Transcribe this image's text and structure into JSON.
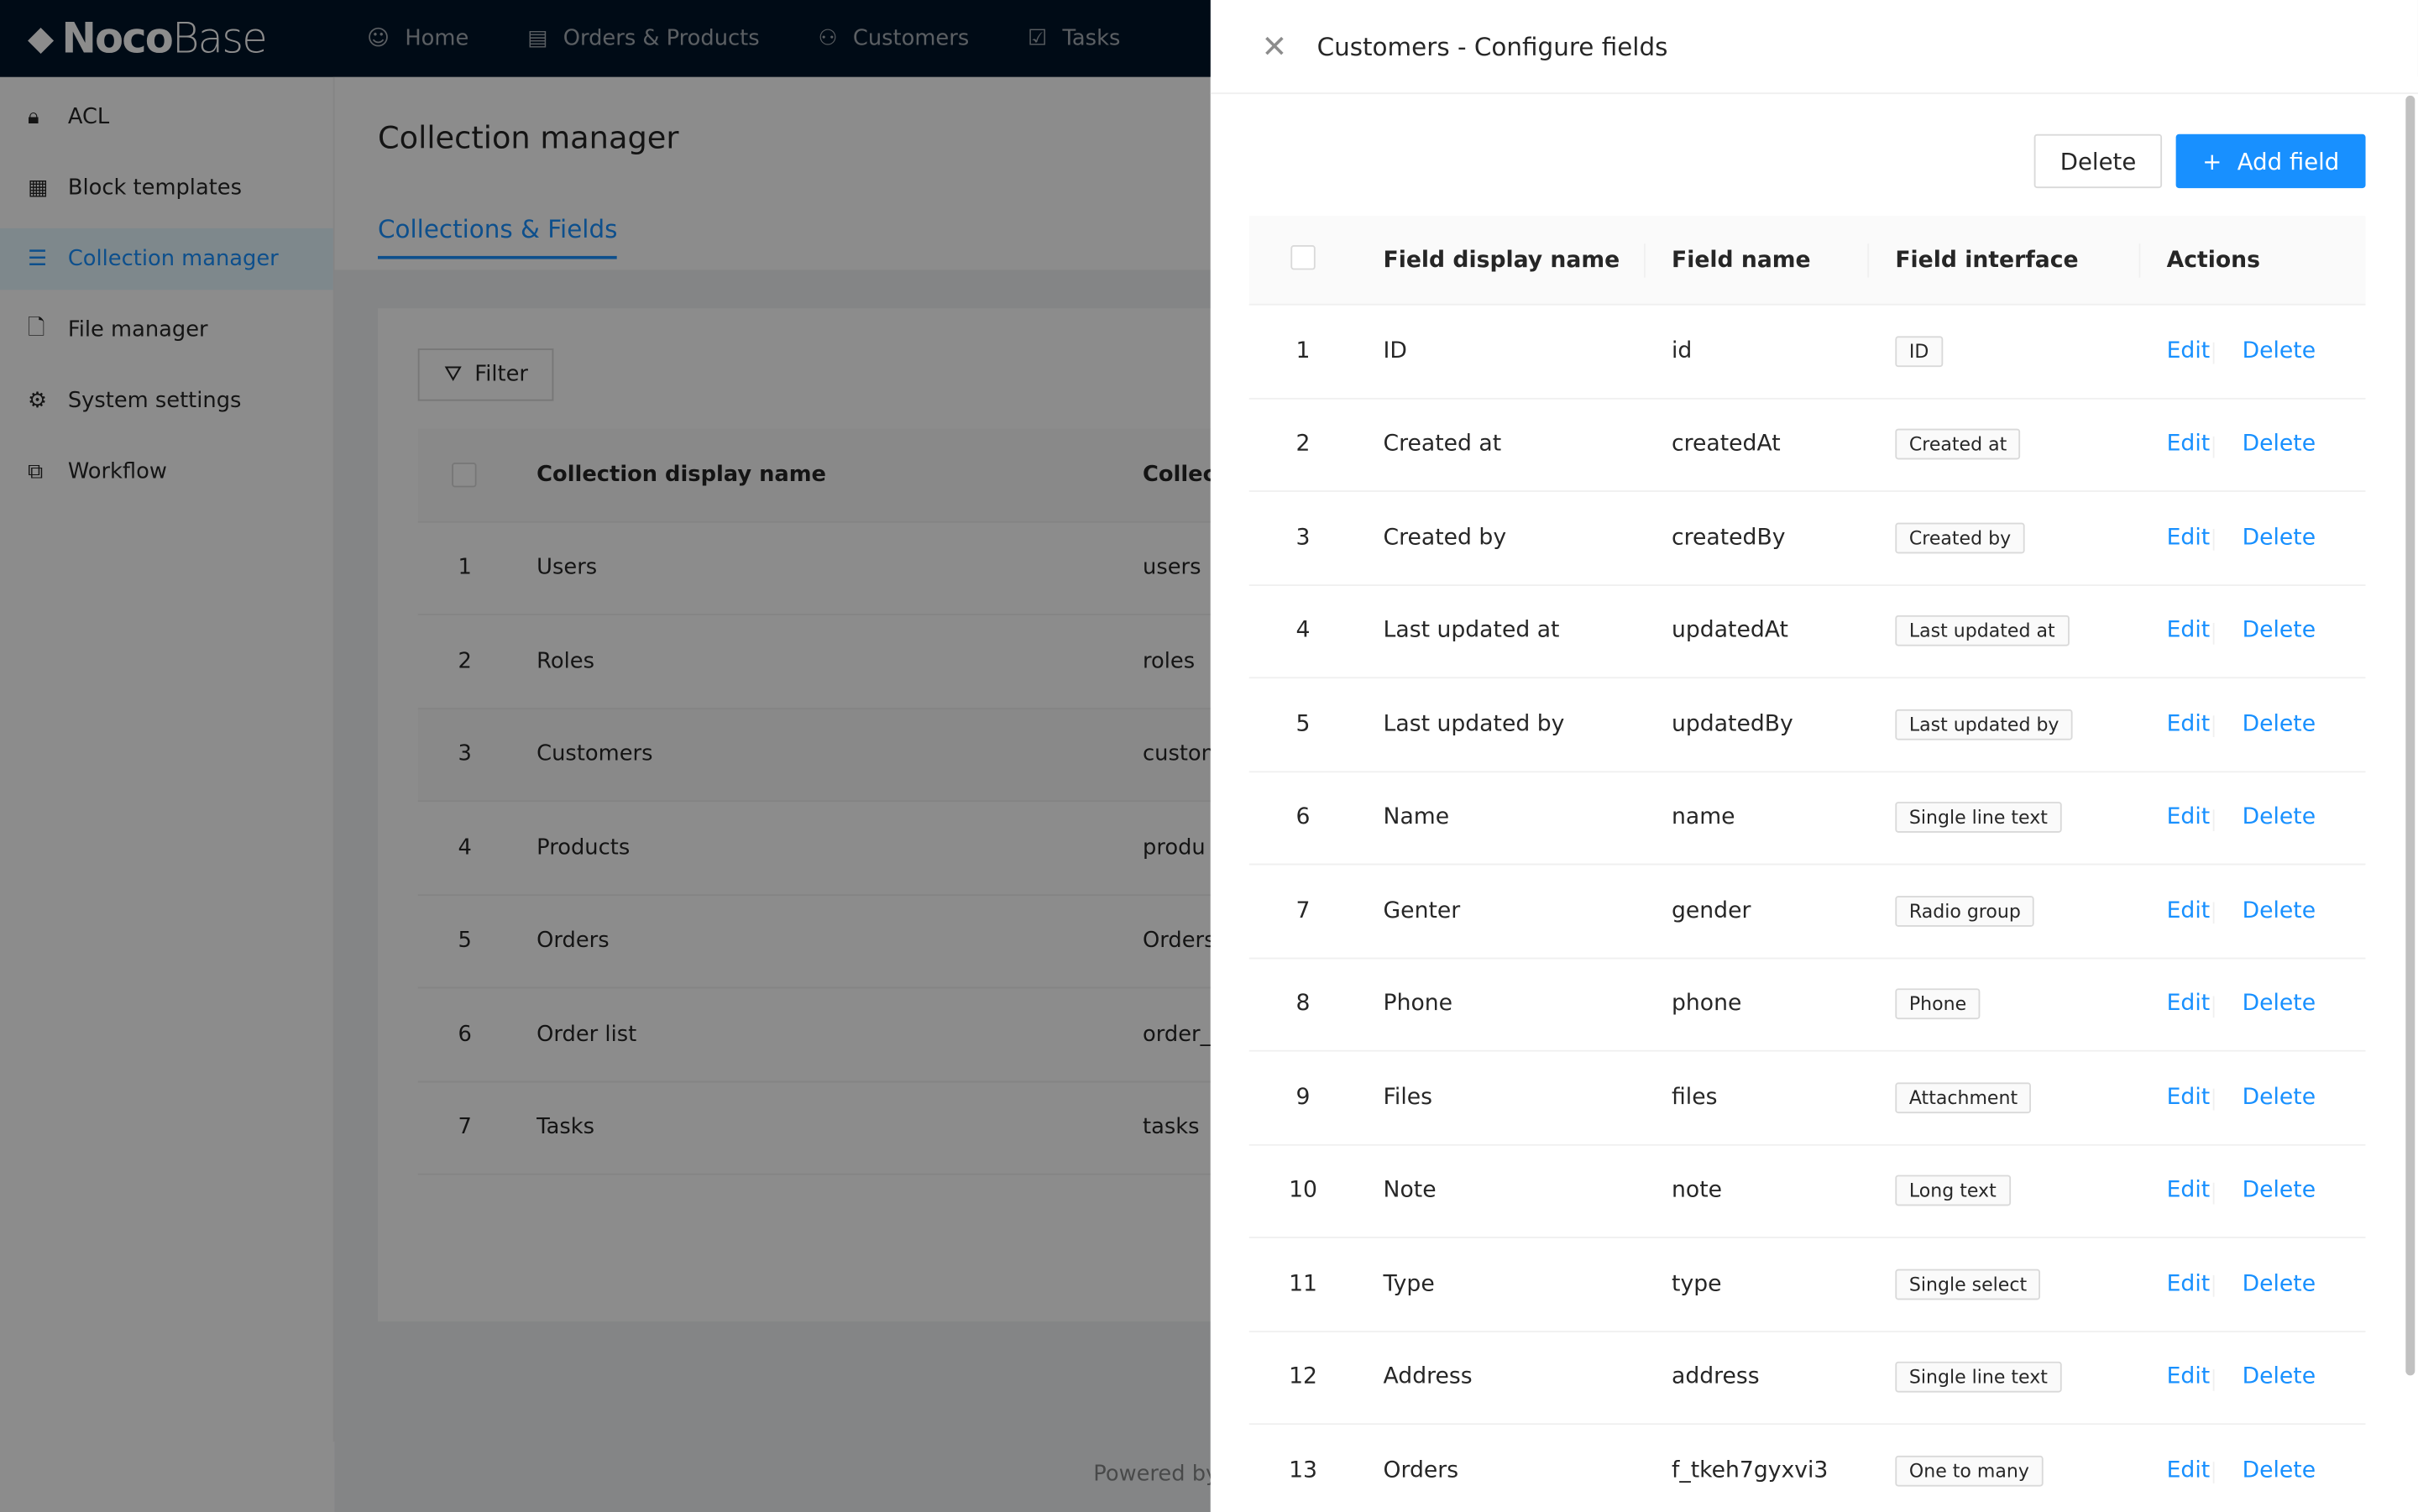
{
  "app": {
    "logo_bold": "Noco",
    "logo_light": "Base",
    "nav": [
      {
        "icon": "smile-icon",
        "label": "Home"
      },
      {
        "icon": "file-check-icon",
        "label": "Orders & Products"
      },
      {
        "icon": "users-icon",
        "label": "Customers"
      },
      {
        "icon": "checkbox-icon",
        "label": "Tasks"
      }
    ]
  },
  "sidebar": {
    "items": [
      {
        "icon": "lock-icon",
        "label": "ACL"
      },
      {
        "icon": "layout-icon",
        "label": "Block templates"
      },
      {
        "icon": "database-icon",
        "label": "Collection manager",
        "active": true
      },
      {
        "icon": "file-icon",
        "label": "File manager"
      },
      {
        "icon": "gear-icon",
        "label": "System settings"
      },
      {
        "icon": "workflow-icon",
        "label": "Workflow"
      }
    ]
  },
  "main": {
    "title": "Collection manager",
    "tab": "Collections & Fields",
    "filter": "Filter",
    "columns": [
      "Collection display name",
      "Collec"
    ],
    "rows": [
      [
        "1",
        "Users",
        "users"
      ],
      [
        "2",
        "Roles",
        "roles"
      ],
      [
        "3",
        "Customers",
        "custon"
      ],
      [
        "4",
        "Products",
        "produ"
      ],
      [
        "5",
        "Orders",
        "Orders"
      ],
      [
        "6",
        "Order list",
        "order_"
      ],
      [
        "7",
        "Tasks",
        "tasks"
      ]
    ],
    "footer": "Powered by"
  },
  "drawer": {
    "title": "Customers - Configure fields",
    "delete": "Delete",
    "add": "Add field",
    "columns": [
      "Field display name",
      "Field name",
      "Field interface",
      "Actions"
    ],
    "edit": "Edit",
    "del": "Delete",
    "rows": [
      [
        "1",
        "ID",
        "id",
        "ID"
      ],
      [
        "2",
        "Created at",
        "createdAt",
        "Created at"
      ],
      [
        "3",
        "Created by",
        "createdBy",
        "Created by"
      ],
      [
        "4",
        "Last updated at",
        "updatedAt",
        "Last updated at"
      ],
      [
        "5",
        "Last updated by",
        "updatedBy",
        "Last updated by"
      ],
      [
        "6",
        "Name",
        "name",
        "Single line text"
      ],
      [
        "7",
        "Genter",
        "gender",
        "Radio group"
      ],
      [
        "8",
        "Phone",
        "phone",
        "Phone"
      ],
      [
        "9",
        "Files",
        "files",
        "Attachment"
      ],
      [
        "10",
        "Note",
        "note",
        "Long text"
      ],
      [
        "11",
        "Type",
        "type",
        "Single select"
      ],
      [
        "12",
        "Address",
        "address",
        "Single line text"
      ],
      [
        "13",
        "Orders",
        "f_tkeh7gyxvi3",
        "One to many"
      ]
    ]
  },
  "colors": {
    "primary": "#1890ff",
    "header": "#001529"
  }
}
